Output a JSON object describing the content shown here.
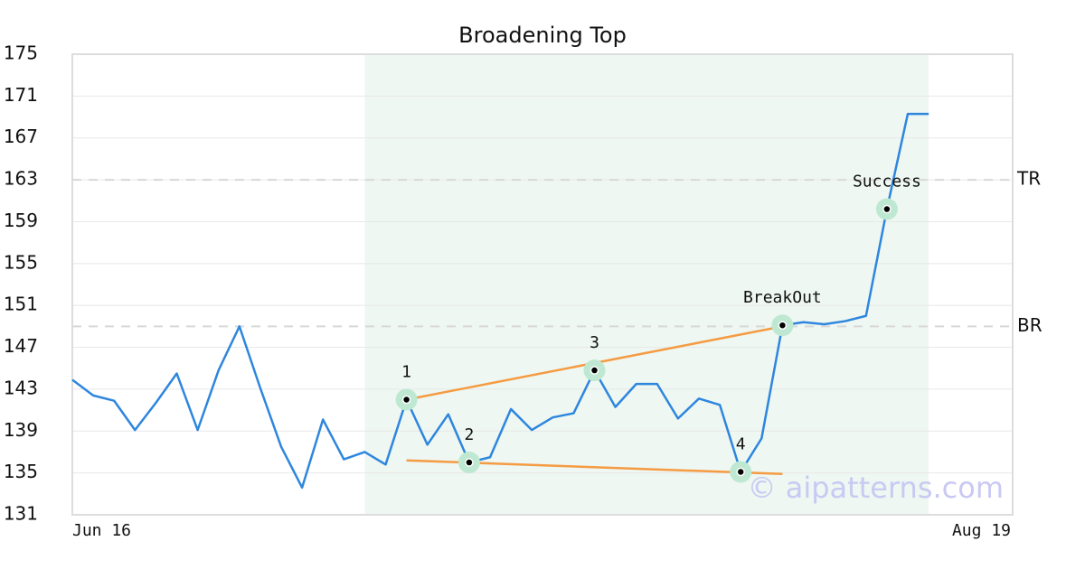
{
  "chart_data": {
    "type": "line",
    "title": "Broadening Top",
    "xlim": [
      "Jun 16",
      "Aug 19"
    ],
    "series": [
      {
        "color": "#2e86de",
        "values": [
          143.9,
          142.4,
          141.9,
          139.1,
          141.7,
          144.5,
          139.1,
          144.8,
          149.0,
          143.1,
          137.5,
          133.6,
          140.1,
          136.3,
          137.0,
          135.8,
          142.0,
          137.7,
          140.6,
          136.0,
          136.5,
          141.1,
          139.1,
          140.3,
          140.7,
          144.8,
          141.3,
          143.5,
          143.5,
          140.2,
          142.1,
          141.5,
          135.1,
          138.3,
          149.1,
          149.4,
          149.2,
          149.5,
          150.0,
          160.2,
          169.3,
          169.3
        ]
      }
    ],
    "ylim": [
      131,
      175
    ],
    "yticks": [
      131,
      135,
      139,
      143,
      147,
      151,
      155,
      159,
      163,
      167,
      171,
      175
    ],
    "grid": true,
    "shade": {
      "from": 14,
      "to": 41,
      "color": "#eef7f2"
    },
    "levels": [
      {
        "label": "TR",
        "value": 163
      },
      {
        "label": "BR",
        "value": 149
      }
    ],
    "trendlines": [
      {
        "color": "#f59b42",
        "from": 16,
        "to": 34,
        "values": [
          142.0,
          149.0
        ]
      },
      {
        "color": "#f59b42",
        "from": 16,
        "to": 34,
        "values": [
          136.2,
          134.9
        ]
      }
    ],
    "annotations": [
      {
        "label": "1",
        "index": 16,
        "value": 142.0
      },
      {
        "label": "2",
        "index": 19,
        "value": 136.0
      },
      {
        "label": "3",
        "index": 25,
        "value": 144.8
      },
      {
        "label": "4",
        "index": 32,
        "value": 135.1
      },
      {
        "label": "BreakOut",
        "index": 34,
        "value": 149.1
      },
      {
        "label": "Success",
        "index": 39,
        "value": 160.2
      }
    ],
    "watermark": "© aipatterns.com"
  }
}
